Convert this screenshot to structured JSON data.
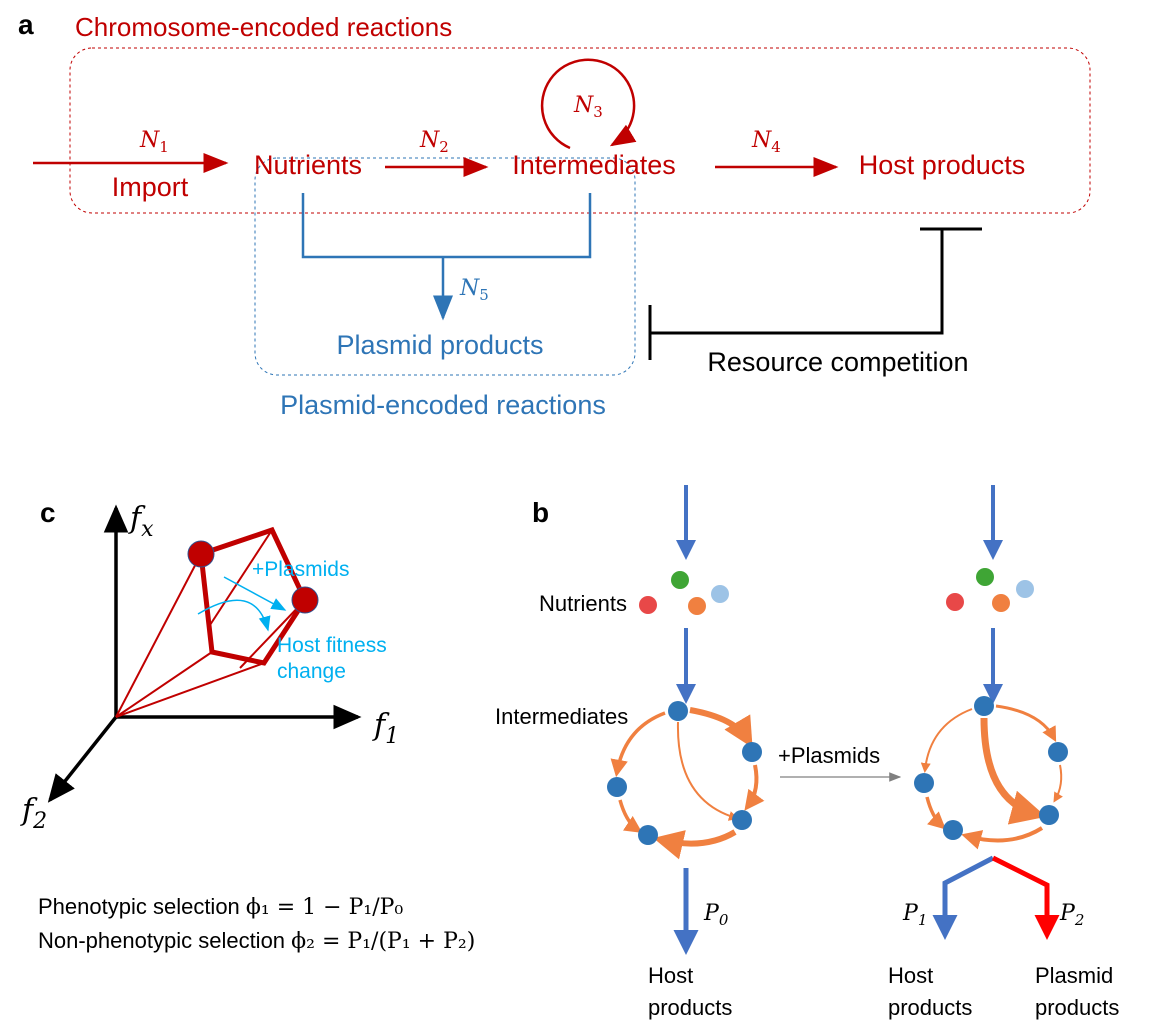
{
  "colors": {
    "chromosome": "#c00000",
    "plasmid": "#2e75b6",
    "highlight": "#00b0f0",
    "flux": "#f08040",
    "node": "#2e75b6",
    "host_arrow": "#4472c4",
    "plasmid_arrow": "#ff0000"
  },
  "panel_a": {
    "label": "a",
    "chromosome_title": "Chromosome-encoded reactions",
    "plasmid_title": "Plasmid-encoded reactions",
    "n1": "N",
    "n1_sub": "1",
    "n2": "N",
    "n2_sub": "2",
    "n3": "N",
    "n3_sub": "3",
    "n4": "N",
    "n4_sub": "4",
    "n5": "N",
    "n5_sub": "5",
    "import": "Import",
    "nutrients": "Nutrients",
    "intermediates": "Intermediates",
    "host_products": "Host products",
    "plasmid_products": "Plasmid products",
    "resource_competition": "Resource competition"
  },
  "panel_c": {
    "label": "c",
    "axis_x": "f",
    "axis_x_sub": "x",
    "axis_1": "f",
    "axis_1_sub": "1",
    "axis_2": "f",
    "axis_2_sub": "2",
    "plasmids": "+Plasmids",
    "host_fitness": "Host fitness",
    "change": "change",
    "eq1_label": "Phenotypic selection",
    "eq1_formula": "ϕ₁ = 1 − P₁/P₀",
    "eq2_label": "Non-phenotypic selection",
    "eq2_formula": "ϕ₂ = P₁/(P₁ + P₂)"
  },
  "panel_b": {
    "label": "b",
    "nutrients": "Nutrients",
    "intermediates": "Intermediates",
    "plasmids": "+Plasmids",
    "p0": "P",
    "p0_sub": "0",
    "p1": "P",
    "p1_sub": "1",
    "p2": "P",
    "p2_sub": "2",
    "host_products_1": "Host",
    "host_products_2": "products",
    "plasmid_products_1": "Plasmid",
    "plasmid_products_2": "products"
  }
}
